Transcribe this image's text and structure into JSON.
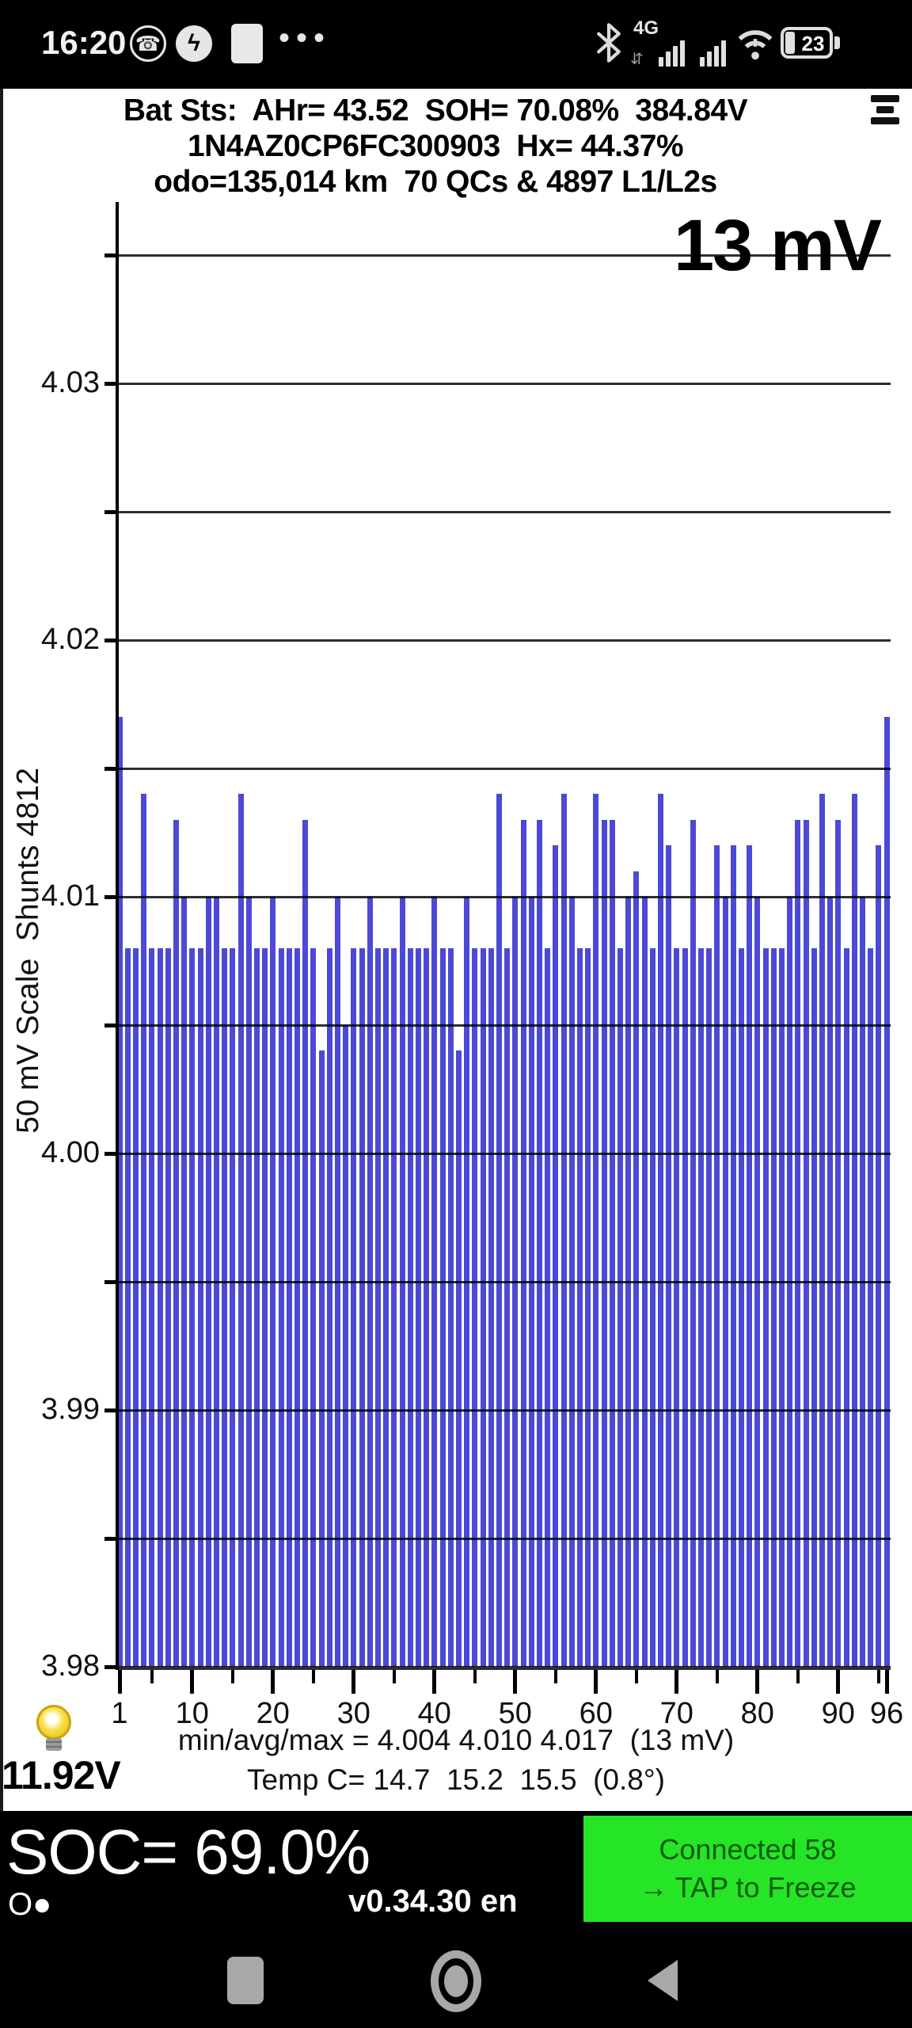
{
  "status_bar": {
    "time": "16:20",
    "dots": "•••",
    "network_label": "4G",
    "updown_arrows": "⇵",
    "battery_percent": "23",
    "messenger_glyph": "ϟ",
    "viber_glyph": "☎"
  },
  "header": {
    "line1": "Bat Sts:  AHr= 43.52  SOH= 70.08%  384.84V",
    "line2": "1N4AZ0CP6FC300903  Hx= 44.37%",
    "line3": "odo=135,014 km  70 QCs & 4897 L1/L2s"
  },
  "chart_data": {
    "type": "bar",
    "annotation": "13 mV",
    "ylabel": "50 mV Scale  Shunts 4812",
    "xlabel": "",
    "ylim": [
      3.98,
      4.035
    ],
    "grid_step_volts": 0.005,
    "grid_on": true,
    "y_ticks": [
      {
        "label": "4.03",
        "value": 4.03
      },
      {
        "label": "4.02",
        "value": 4.02
      },
      {
        "label": "4.01",
        "value": 4.01
      },
      {
        "label": "4.00",
        "value": 4.0
      },
      {
        "label": "3.99",
        "value": 3.99
      },
      {
        "label": "3.98",
        "value": 3.98
      }
    ],
    "x_ticks_major": [
      1,
      10,
      20,
      30,
      40,
      50,
      60,
      70,
      80,
      90,
      96
    ],
    "x_ticks_minor": [
      5,
      15,
      25,
      35,
      45,
      55,
      65,
      75,
      85,
      95
    ],
    "cells": 96,
    "values": [
      4.017,
      4.008,
      4.008,
      4.014,
      4.008,
      4.008,
      4.008,
      4.013,
      4.01,
      4.008,
      4.008,
      4.01,
      4.01,
      4.008,
      4.008,
      4.014,
      4.01,
      4.008,
      4.008,
      4.01,
      4.008,
      4.008,
      4.008,
      4.013,
      4.008,
      4.004,
      4.008,
      4.01,
      4.005,
      4.008,
      4.008,
      4.01,
      4.008,
      4.008,
      4.008,
      4.01,
      4.008,
      4.008,
      4.008,
      4.01,
      4.008,
      4.008,
      4.004,
      4.01,
      4.008,
      4.008,
      4.008,
      4.014,
      4.008,
      4.01,
      4.013,
      4.01,
      4.013,
      4.008,
      4.012,
      4.014,
      4.01,
      4.008,
      4.008,
      4.014,
      4.013,
      4.013,
      4.008,
      4.01,
      4.011,
      4.01,
      4.008,
      4.014,
      4.012,
      4.008,
      4.008,
      4.013,
      4.008,
      4.008,
      4.012,
      4.01,
      4.012,
      4.008,
      4.012,
      4.01,
      4.008,
      4.008,
      4.008,
      4.01,
      4.013,
      4.013,
      4.008,
      4.014,
      4.01,
      4.013,
      4.008,
      4.014,
      4.01,
      4.008,
      4.012,
      4.017
    ],
    "summary": {
      "min": 4.004,
      "avg": 4.01,
      "max": 4.017,
      "spread_mv": 13
    }
  },
  "footer": {
    "stats_line": "min/avg/max = 4.004 4.010 4.017  (13 mV)",
    "temp_line": "Temp C= 14.7  15.2  15.5  (0.8°)",
    "aux_voltage": "11.92V"
  },
  "bottom_bar": {
    "soc_label": "SOC= 69.0%",
    "indicator": "O●",
    "version": "v0.34.30 en",
    "connect_line1": "Connected 58",
    "connect_line2": "→ TAP to Freeze"
  },
  "colors": {
    "bar": "#4c49d6",
    "connected_bg": "#26e426",
    "connected_text": "#0a5c0a"
  }
}
